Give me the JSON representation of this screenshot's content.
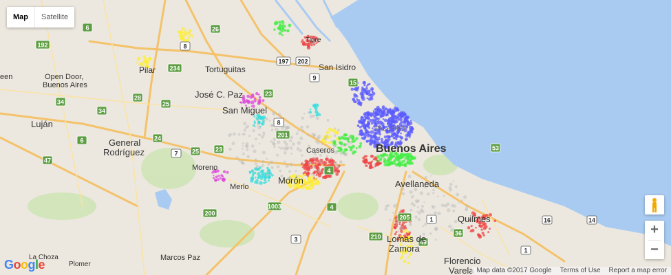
{
  "map_type": {
    "map": "Map",
    "satellite": "Satellite"
  },
  "zoom": {
    "in": "+",
    "out": "−"
  },
  "logo": "Google",
  "footer": {
    "data": "Map data ©2017 Google",
    "terms": "Terms of Use",
    "report": "Report a map error"
  },
  "labels": {
    "buenos_aires": "Buenos Aires",
    "palermo": "PALERMO",
    "tigre": "Tigre",
    "san_isidro": "San Isidro",
    "tortuguitas": "Tortuguitas",
    "pilar": "Pilar",
    "open_door": "Open Door,",
    "open_door2": "Buenos Aires",
    "jose_c_paz": "José C. Paz",
    "san_miguel": "San Miguel",
    "lujan": "Luján",
    "general": "General",
    "rodriguez": "Rodríguez",
    "moreno": "Moreno",
    "merlo": "Merlo",
    "moron": "Morón",
    "caseros": "Caseros",
    "avellaneda": "Avellaneda",
    "quilmes": "Quilmes",
    "lomas": "Lomas de",
    "zamora": "Zamora",
    "florencio": "Florencio",
    "varela": "Varela",
    "marcos_paz": "Marcos Paz",
    "la_choza": "La Choza",
    "plomer": "Plomer",
    "eeen": "een"
  },
  "routes": [
    "6",
    "26",
    "192",
    "8",
    "234",
    "197",
    "202",
    "9",
    "15",
    "34",
    "34",
    "28",
    "25",
    "23",
    "8",
    "201",
    "6",
    "24",
    "47",
    "7",
    "25",
    "23",
    "1003",
    "200",
    "4",
    "3",
    "205",
    "1",
    "210",
    "49",
    "36",
    "1",
    "16",
    "14",
    "4",
    "53"
  ],
  "colors": {
    "water": "#a9cbf2",
    "land": "#ece8df",
    "park": "#c5dfa8",
    "highway": "#f4c26a",
    "route_shield": "#5d9e43"
  }
}
